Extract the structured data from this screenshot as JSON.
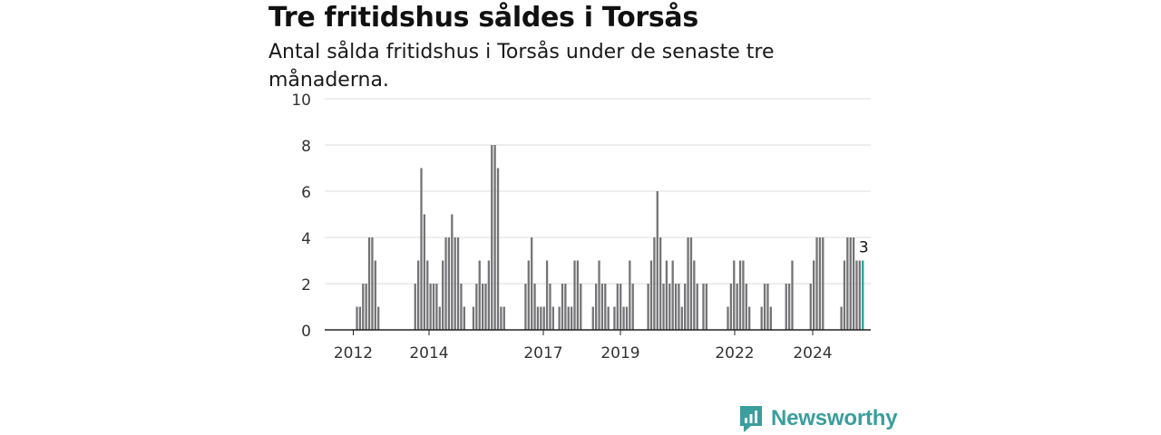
{
  "title": "Tre fritidshus såldes i Torsås",
  "subtitle": "Antal sålda fritidshus i Torsås under de senaste tre månaderna.",
  "brand": {
    "name": "Newsworthy",
    "icon": "newsworthy-logo-icon",
    "color": "#3a9e9c"
  },
  "colors": {
    "bar": "#747477",
    "highlight": "#22a39a",
    "grid": "#dddddd",
    "axis": "#222222"
  },
  "chart_data": {
    "type": "bar",
    "xlabel": "",
    "ylabel": "",
    "ylim": [
      0,
      10
    ],
    "yticks": [
      0,
      2,
      4,
      6,
      8,
      10
    ],
    "xticks": [
      "2012",
      "2014",
      "2017",
      "2019",
      "2022",
      "2024"
    ],
    "grid": true,
    "highlight_label": "3",
    "series": [
      {
        "values": [
          0,
          1,
          1,
          2,
          2,
          4,
          4,
          3,
          1,
          0,
          0,
          0,
          0,
          0,
          0,
          0,
          0,
          0,
          0,
          0,
          2,
          3,
          7,
          5,
          3,
          2,
          2,
          2,
          1,
          3,
          4,
          4,
          5,
          4,
          4,
          2,
          1,
          0,
          0,
          1,
          2,
          3,
          2,
          2,
          3,
          8,
          8,
          7,
          1,
          1,
          0,
          0,
          0,
          0,
          0,
          0,
          2,
          3,
          4,
          2,
          1,
          1,
          1,
          3,
          2,
          1,
          0,
          1,
          2,
          2,
          1,
          1,
          3,
          3,
          2,
          0,
          0,
          0,
          1,
          2,
          3,
          2,
          2,
          1,
          0,
          1,
          2,
          2,
          1,
          1,
          3,
          2,
          0,
          0,
          0,
          0,
          2,
          3,
          4,
          6,
          4,
          2,
          3,
          2,
          3,
          2,
          2,
          1,
          2,
          4,
          4,
          3,
          2,
          0,
          2,
          2,
          0,
          0,
          0,
          0,
          0,
          0,
          1,
          2,
          3,
          2,
          3,
          3,
          2,
          1,
          0,
          0,
          0,
          1,
          2,
          2,
          1,
          0,
          0,
          0,
          0,
          2,
          2,
          3,
          0,
          0,
          0,
          0,
          0,
          2,
          3,
          4,
          4,
          4,
          0,
          0,
          0,
          0,
          0,
          1,
          3,
          4,
          4,
          4,
          3,
          3,
          3
        ]
      }
    ]
  }
}
